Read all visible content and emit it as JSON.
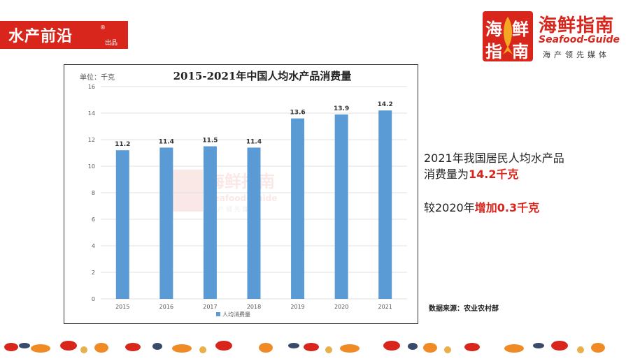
{
  "brand_left": {
    "main": "水产前沿",
    "reg": "®",
    "sub": "出品"
  },
  "brand_right": {
    "logo_chars": [
      "海",
      "鲜",
      "指",
      "南"
    ],
    "title": "海鲜指南",
    "en": "Seafood-Guide",
    "tagline": "海产领先媒体"
  },
  "side_text": {
    "line1": "2021年我国居民人均水产品",
    "line2_prefix": "消费量为",
    "line2_highlight": "14.2千克",
    "line3_prefix": "较2020年",
    "line3_highlight": "增加0.3千克"
  },
  "source": "数据来源：农业农村部",
  "colors": {
    "bar": "#5b9bd5",
    "brand_red": "#d9261c"
  },
  "chart_data": {
    "type": "bar",
    "title": "2015-2021年中国人均水产品消费量",
    "unit_label": "单位：千克",
    "categories": [
      "2015",
      "2016",
      "2017",
      "2018",
      "2019",
      "2020",
      "2021"
    ],
    "series": [
      {
        "name": "人均消费量",
        "values": [
          11.2,
          11.4,
          11.5,
          11.4,
          13.6,
          13.9,
          14.2
        ]
      }
    ],
    "y_ticks": [
      0,
      2,
      4,
      6,
      8,
      10,
      12,
      14,
      16
    ],
    "ylim": [
      0,
      16
    ],
    "grid": true,
    "legend_position": "bottom",
    "watermark": {
      "cn": "海鲜指南",
      "en": "Seafood-Guide",
      "tag": "海 产 领 先 媒 体"
    }
  }
}
